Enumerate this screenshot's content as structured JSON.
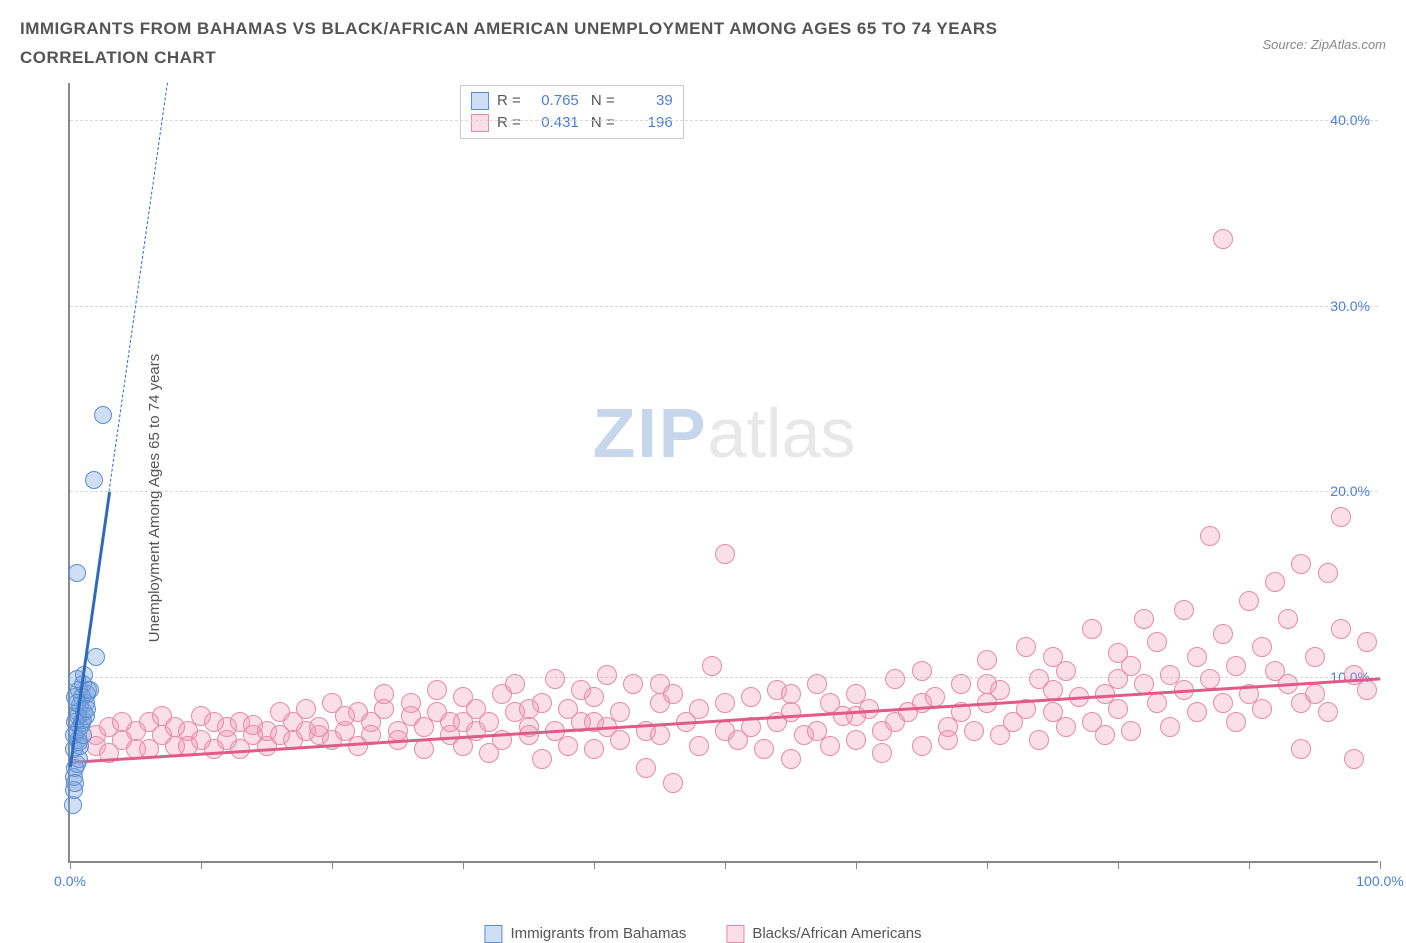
{
  "header": {
    "title": "IMMIGRANTS FROM BAHAMAS VS BLACK/AFRICAN AMERICAN UNEMPLOYMENT AMONG AGES 65 TO 74 YEARS CORRELATION CHART",
    "source_label": "Source: ZipAtlas.com"
  },
  "chart": {
    "type": "scatter",
    "ylabel": "Unemployment Among Ages 65 to 74 years",
    "background_color": "#ffffff",
    "grid_color": "#d8d8d8",
    "axis_color": "#888888",
    "tick_label_color": "#4a7fd8",
    "xlim": [
      0,
      100
    ],
    "ylim": [
      0,
      42
    ],
    "xticks": [
      0,
      10,
      20,
      30,
      40,
      50,
      60,
      70,
      80,
      90,
      100
    ],
    "xtick_labels": {
      "0": "0.0%",
      "100": "100.0%"
    },
    "yticks": [
      10,
      20,
      30,
      40
    ],
    "ytick_labels": {
      "10": "10.0%",
      "20": "20.0%",
      "30": "30.0%",
      "40": "40.0%"
    },
    "watermark": {
      "part1": "ZIP",
      "part2": "atlas",
      "color1": "#c8d6ec",
      "color2": "#e8e8e8"
    },
    "series": [
      {
        "name": "Immigrants from Bahamas",
        "marker_color_fill": "rgba(120,160,220,0.35)",
        "marker_color_stroke": "#5a8fd0",
        "marker_radius": 9,
        "trend_color": "#2e6bc0",
        "trend": {
          "x1": 0,
          "y1": 5.2,
          "x2": 3.0,
          "y2": 20.0,
          "dash_to_y": 42
        },
        "stats": {
          "R": "0.765",
          "N": "39"
        },
        "points": [
          [
            0.2,
            3.0
          ],
          [
            0.3,
            3.8
          ],
          [
            0.3,
            4.5
          ],
          [
            0.4,
            5.0
          ],
          [
            0.5,
            5.2
          ],
          [
            0.3,
            6.0
          ],
          [
            0.6,
            6.5
          ],
          [
            0.7,
            6.4
          ],
          [
            0.5,
            7.0
          ],
          [
            0.8,
            7.2
          ],
          [
            0.4,
            7.5
          ],
          [
            0.9,
            7.4
          ],
          [
            1.0,
            7.6
          ],
          [
            0.6,
            8.0
          ],
          [
            1.1,
            8.0
          ],
          [
            0.8,
            8.4
          ],
          [
            1.2,
            8.5
          ],
          [
            0.4,
            8.8
          ],
          [
            1.3,
            9.0
          ],
          [
            0.7,
            9.2
          ],
          [
            1.0,
            9.5
          ],
          [
            1.4,
            9.2
          ],
          [
            0.5,
            9.8
          ],
          [
            1.1,
            10.0
          ],
          [
            2.0,
            11.0
          ],
          [
            0.3,
            6.8
          ],
          [
            0.6,
            7.8
          ],
          [
            0.9,
            8.8
          ],
          [
            1.5,
            9.2
          ],
          [
            0.5,
            15.5
          ],
          [
            1.8,
            20.5
          ],
          [
            2.5,
            24.0
          ],
          [
            0.4,
            4.2
          ],
          [
            0.7,
            5.5
          ],
          [
            0.8,
            6.2
          ],
          [
            1.0,
            6.8
          ],
          [
            1.2,
            7.8
          ],
          [
            0.5,
            8.5
          ],
          [
            1.3,
            8.2
          ]
        ]
      },
      {
        "name": "Blacks/African Americans",
        "marker_color_fill": "rgba(240,150,180,0.30)",
        "marker_color_stroke": "#e88aa8",
        "marker_radius": 10,
        "trend_color": "#e05a8a",
        "trend": {
          "x1": 0,
          "y1": 5.5,
          "x2": 100,
          "y2": 10.0
        },
        "stats": {
          "R": "0.431",
          "N": "196"
        },
        "points": [
          [
            2,
            6.8
          ],
          [
            3,
            7.2
          ],
          [
            4,
            6.5
          ],
          [
            5,
            7.0
          ],
          [
            5,
            6.0
          ],
          [
            6,
            7.5
          ],
          [
            7,
            6.8
          ],
          [
            8,
            7.2
          ],
          [
            8,
            6.2
          ],
          [
            9,
            7.0
          ],
          [
            10,
            6.5
          ],
          [
            10,
            7.8
          ],
          [
            11,
            6.0
          ],
          [
            12,
            7.2
          ],
          [
            12,
            6.5
          ],
          [
            13,
            7.5
          ],
          [
            14,
            6.8
          ],
          [
            14,
            7.3
          ],
          [
            15,
            6.2
          ],
          [
            15,
            7.0
          ],
          [
            16,
            8.0
          ],
          [
            17,
            6.5
          ],
          [
            17,
            7.5
          ],
          [
            18,
            7.0
          ],
          [
            18,
            8.2
          ],
          [
            19,
            6.8
          ],
          [
            19,
            7.2
          ],
          [
            20,
            8.5
          ],
          [
            20,
            6.5
          ],
          [
            21,
            7.0
          ],
          [
            21,
            7.8
          ],
          [
            22,
            8.0
          ],
          [
            22,
            6.2
          ],
          [
            23,
            7.5
          ],
          [
            23,
            6.8
          ],
          [
            24,
            8.2
          ],
          [
            24,
            9.0
          ],
          [
            25,
            7.0
          ],
          [
            25,
            6.5
          ],
          [
            26,
            8.5
          ],
          [
            26,
            7.8
          ],
          [
            27,
            6.0
          ],
          [
            27,
            7.2
          ],
          [
            28,
            8.0
          ],
          [
            28,
            9.2
          ],
          [
            29,
            6.8
          ],
          [
            29,
            7.5
          ],
          [
            30,
            8.8
          ],
          [
            30,
            6.2
          ],
          [
            31,
            7.0
          ],
          [
            31,
            8.2
          ],
          [
            32,
            5.8
          ],
          [
            32,
            7.5
          ],
          [
            33,
            9.0
          ],
          [
            33,
            6.5
          ],
          [
            34,
            8.0
          ],
          [
            34,
            9.5
          ],
          [
            35,
            7.2
          ],
          [
            35,
            6.8
          ],
          [
            36,
            5.5
          ],
          [
            36,
            8.5
          ],
          [
            37,
            9.8
          ],
          [
            37,
            7.0
          ],
          [
            38,
            6.2
          ],
          [
            38,
            8.2
          ],
          [
            39,
            9.2
          ],
          [
            39,
            7.5
          ],
          [
            40,
            6.0
          ],
          [
            40,
            8.8
          ],
          [
            41,
            10.0
          ],
          [
            41,
            7.2
          ],
          [
            42,
            6.5
          ],
          [
            42,
            8.0
          ],
          [
            43,
            9.5
          ],
          [
            44,
            7.0
          ],
          [
            44,
            5.0
          ],
          [
            45,
            8.5
          ],
          [
            45,
            6.8
          ],
          [
            46,
            4.2
          ],
          [
            46,
            9.0
          ],
          [
            47,
            7.5
          ],
          [
            48,
            6.2
          ],
          [
            48,
            8.2
          ],
          [
            49,
            10.5
          ],
          [
            50,
            7.0
          ],
          [
            50,
            16.5
          ],
          [
            51,
            6.5
          ],
          [
            52,
            8.8
          ],
          [
            52,
            7.2
          ],
          [
            53,
            6.0
          ],
          [
            54,
            9.2
          ],
          [
            54,
            7.5
          ],
          [
            55,
            5.5
          ],
          [
            55,
            8.0
          ],
          [
            56,
            6.8
          ],
          [
            57,
            9.5
          ],
          [
            57,
            7.0
          ],
          [
            58,
            8.5
          ],
          [
            58,
            6.2
          ],
          [
            59,
            7.8
          ],
          [
            60,
            9.0
          ],
          [
            60,
            6.5
          ],
          [
            61,
            8.2
          ],
          [
            62,
            7.0
          ],
          [
            62,
            5.8
          ],
          [
            63,
            9.8
          ],
          [
            63,
            7.5
          ],
          [
            64,
            8.0
          ],
          [
            65,
            6.2
          ],
          [
            65,
            10.2
          ],
          [
            66,
            8.8
          ],
          [
            67,
            7.2
          ],
          [
            67,
            6.5
          ],
          [
            68,
            9.5
          ],
          [
            68,
            8.0
          ],
          [
            69,
            7.0
          ],
          [
            70,
            10.8
          ],
          [
            70,
            8.5
          ],
          [
            71,
            6.8
          ],
          [
            71,
            9.2
          ],
          [
            72,
            7.5
          ],
          [
            73,
            11.5
          ],
          [
            73,
            8.2
          ],
          [
            74,
            6.5
          ],
          [
            74,
            9.8
          ],
          [
            75,
            8.0
          ],
          [
            75,
            11.0
          ],
          [
            76,
            7.2
          ],
          [
            76,
            10.2
          ],
          [
            77,
            8.8
          ],
          [
            78,
            12.5
          ],
          [
            78,
            7.5
          ],
          [
            79,
            9.0
          ],
          [
            79,
            6.8
          ],
          [
            80,
            11.2
          ],
          [
            80,
            8.2
          ],
          [
            81,
            10.5
          ],
          [
            81,
            7.0
          ],
          [
            82,
            13.0
          ],
          [
            82,
            9.5
          ],
          [
            83,
            8.5
          ],
          [
            83,
            11.8
          ],
          [
            84,
            7.2
          ],
          [
            84,
            10.0
          ],
          [
            85,
            9.2
          ],
          [
            85,
            13.5
          ],
          [
            86,
            8.0
          ],
          [
            86,
            11.0
          ],
          [
            87,
            9.8
          ],
          [
            87,
            17.5
          ],
          [
            88,
            8.5
          ],
          [
            88,
            12.2
          ],
          [
            89,
            10.5
          ],
          [
            89,
            7.5
          ],
          [
            90,
            14.0
          ],
          [
            90,
            9.0
          ],
          [
            91,
            11.5
          ],
          [
            91,
            8.2
          ],
          [
            92,
            15.0
          ],
          [
            92,
            10.2
          ],
          [
            93,
            9.5
          ],
          [
            93,
            13.0
          ],
          [
            94,
            8.5
          ],
          [
            94,
            16.0
          ],
          [
            95,
            11.0
          ],
          [
            95,
            9.0
          ],
          [
            96,
            15.5
          ],
          [
            96,
            8.0
          ],
          [
            97,
            12.5
          ],
          [
            97,
            18.5
          ],
          [
            98,
            10.0
          ],
          [
            98,
            5.5
          ],
          [
            99,
            11.8
          ],
          [
            99,
            9.2
          ],
          [
            94,
            6.0
          ],
          [
            88,
            33.5
          ],
          [
            2,
            6.2
          ],
          [
            3,
            5.8
          ],
          [
            4,
            7.5
          ],
          [
            6,
            6.0
          ],
          [
            7,
            7.8
          ],
          [
            9,
            6.2
          ],
          [
            11,
            7.5
          ],
          [
            13,
            6.0
          ],
          [
            16,
            6.8
          ],
          [
            30,
            7.5
          ],
          [
            35,
            8.2
          ],
          [
            40,
            7.5
          ],
          [
            45,
            9.5
          ],
          [
            50,
            8.5
          ],
          [
            55,
            9.0
          ],
          [
            60,
            7.8
          ],
          [
            65,
            8.5
          ],
          [
            70,
            9.5
          ],
          [
            75,
            9.2
          ],
          [
            80,
            9.8
          ]
        ]
      }
    ]
  }
}
